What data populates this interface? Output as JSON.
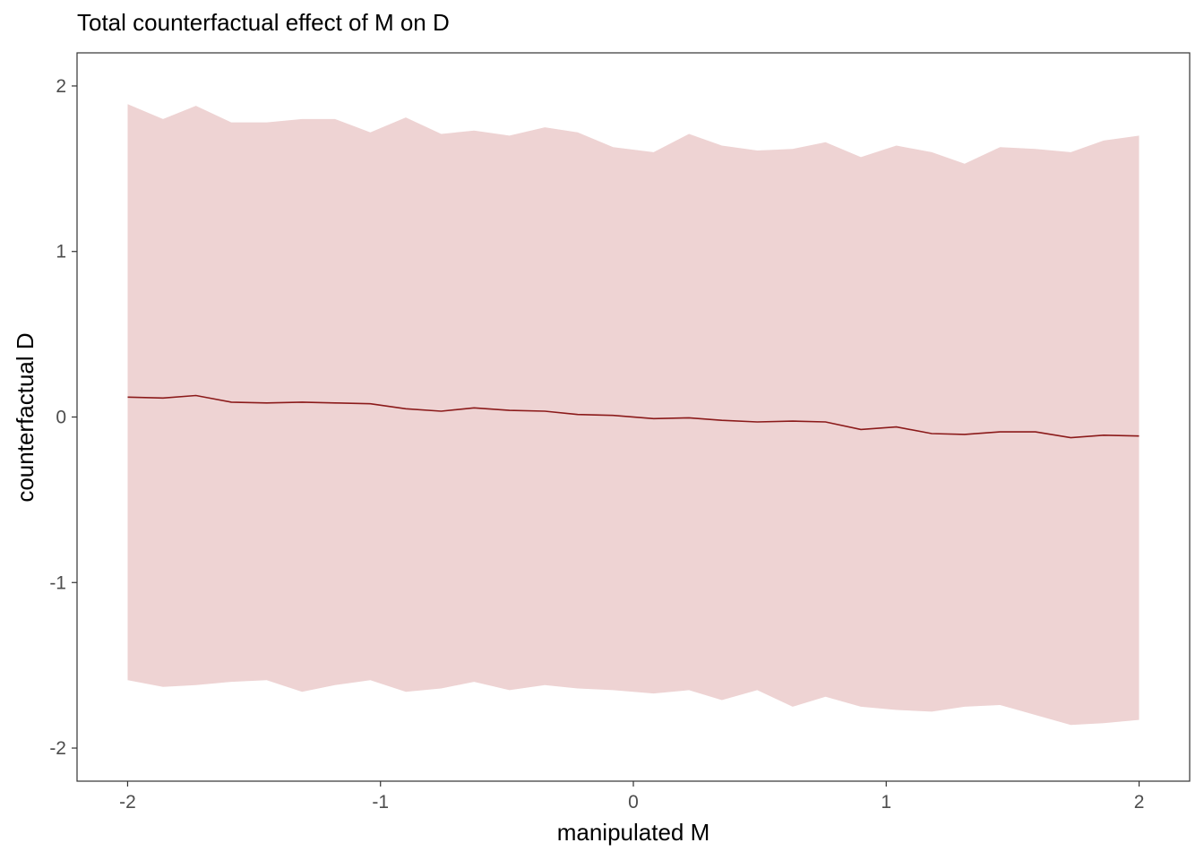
{
  "chart_data": {
    "type": "area",
    "title": "Total counterfactual effect of M on D",
    "xlabel": "manipulated M",
    "ylabel": "counterfactual D",
    "xlim": [
      -2.2,
      2.2
    ],
    "ylim": [
      -2.2,
      2.2
    ],
    "xticks": [
      -2,
      -1,
      0,
      1,
      2
    ],
    "xtick_labels": [
      "-2",
      "-1",
      "0",
      "1",
      "2"
    ],
    "yticks": [
      -2,
      -1,
      0,
      1,
      2
    ],
    "ytick_labels": [
      "-2",
      "-1",
      "0",
      "1",
      "2"
    ],
    "grid": false,
    "legend": "none",
    "colors": {
      "line": "#8b1a1a",
      "band": "#eed3d3"
    },
    "x": [
      -2.0,
      -1.86,
      -1.73,
      -1.59,
      -1.45,
      -1.31,
      -1.18,
      -1.04,
      -0.9,
      -0.76,
      -0.63,
      -0.49,
      -0.35,
      -0.22,
      -0.08,
      0.08,
      0.22,
      0.35,
      0.49,
      0.63,
      0.76,
      0.9,
      1.04,
      1.18,
      1.31,
      1.45,
      1.59,
      1.73,
      1.86,
      2.0
    ],
    "series": [
      {
        "role": "mean",
        "values": [
          0.12,
          0.115,
          0.13,
          0.09,
          0.085,
          0.09,
          0.085,
          0.08,
          0.05,
          0.035,
          0.055,
          0.04,
          0.035,
          0.015,
          0.01,
          -0.01,
          -0.005,
          -0.02,
          -0.03,
          -0.025,
          -0.03,
          -0.075,
          -0.06,
          -0.1,
          -0.105,
          -0.09,
          -0.09,
          -0.125,
          -0.11,
          -0.115
        ]
      },
      {
        "role": "upper",
        "values": [
          1.89,
          1.8,
          1.88,
          1.78,
          1.78,
          1.8,
          1.8,
          1.72,
          1.81,
          1.71,
          1.73,
          1.7,
          1.75,
          1.72,
          1.63,
          1.6,
          1.71,
          1.64,
          1.61,
          1.62,
          1.66,
          1.57,
          1.64,
          1.6,
          1.53,
          1.63,
          1.62,
          1.6,
          1.67,
          1.7
        ]
      },
      {
        "role": "lower",
        "values": [
          -1.59,
          -1.63,
          -1.62,
          -1.6,
          -1.59,
          -1.66,
          -1.62,
          -1.59,
          -1.66,
          -1.64,
          -1.6,
          -1.65,
          -1.62,
          -1.64,
          -1.65,
          -1.67,
          -1.65,
          -1.71,
          -1.65,
          -1.75,
          -1.69,
          -1.75,
          -1.77,
          -1.78,
          -1.75,
          -1.74,
          -1.8,
          -1.86,
          -1.85,
          -1.83
        ]
      }
    ]
  }
}
